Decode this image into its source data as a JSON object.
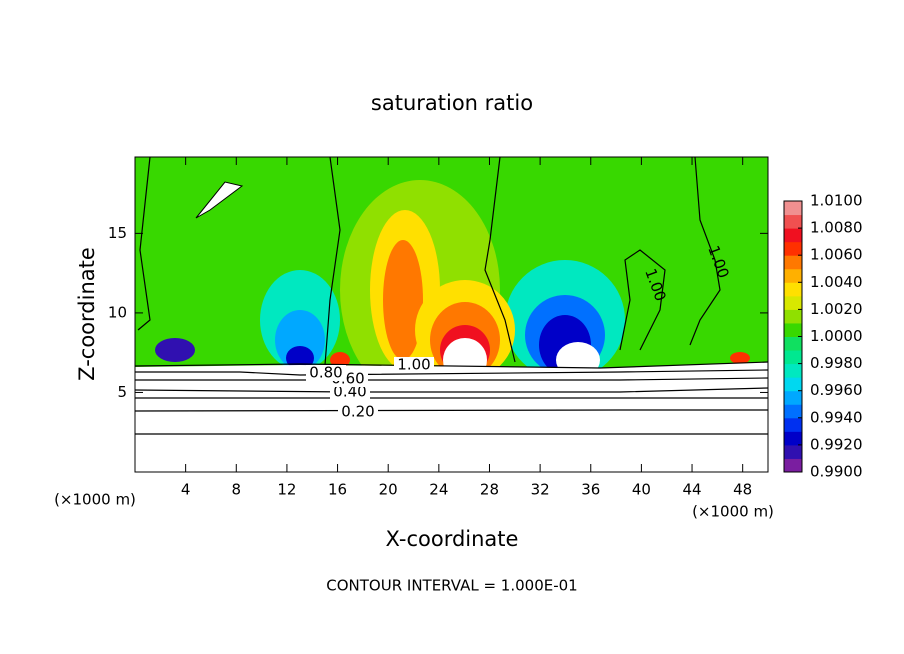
{
  "chart_data": {
    "type": "contour",
    "title": "saturation ratio",
    "xlabel": "X-coordinate",
    "ylabel": "Z-coordinate",
    "x_unit": "(×1000 m)",
    "footer": "CONTOUR INTERVAL = 1.000E-01",
    "xlim": [
      0,
      50
    ],
    "ylim": [
      0,
      19.8
    ],
    "xticks": [
      4,
      8,
      12,
      16,
      20,
      24,
      28,
      32,
      36,
      40,
      44,
      48
    ],
    "yticks": [
      5,
      10,
      15
    ],
    "contour_labels": [
      {
        "value": 0.2,
        "label": "0.20"
      },
      {
        "value": 0.4,
        "label": "0.40"
      },
      {
        "value": 0.6,
        "label": "0.60"
      },
      {
        "value": 0.8,
        "label": "0.80"
      },
      {
        "value": 1,
        "label": "1.00"
      },
      {
        "value": 1,
        "label": "1.00"
      },
      {
        "value": 1,
        "label": "1.00"
      }
    ],
    "colorbar": {
      "lim": [
        0.99,
        1.01
      ],
      "ticks": [
        {
          "value": 0.99,
          "label": "0.9900"
        },
        {
          "value": 0.992,
          "label": "0.9920"
        },
        {
          "value": 0.994,
          "label": "0.9940"
        },
        {
          "value": 0.996,
          "label": "0.9960"
        },
        {
          "value": 0.998,
          "label": "0.9980"
        },
        {
          "value": 1,
          "label": "1.0000"
        },
        {
          "value": 1.002,
          "label": "1.0020"
        },
        {
          "value": 1.004,
          "label": "1.0040"
        },
        {
          "value": 1.006,
          "label": "1.0060"
        },
        {
          "value": 1.008,
          "label": "1.0080"
        },
        {
          "value": 1.01,
          "label": "1.0100"
        }
      ],
      "colors": [
        "#7a1ea0",
        "#3010b0",
        "#0000c8",
        "#0030f0",
        "#0070ff",
        "#00a8ff",
        "#00d8f0",
        "#00e8c0",
        "#00e890",
        "#10e060",
        "#38d800",
        "#90e000",
        "#d8e800",
        "#ffe000",
        "#ffb000",
        "#ff7800",
        "#ff3000",
        "#f01020",
        "#f05050",
        "#f09090"
      ]
    }
  }
}
